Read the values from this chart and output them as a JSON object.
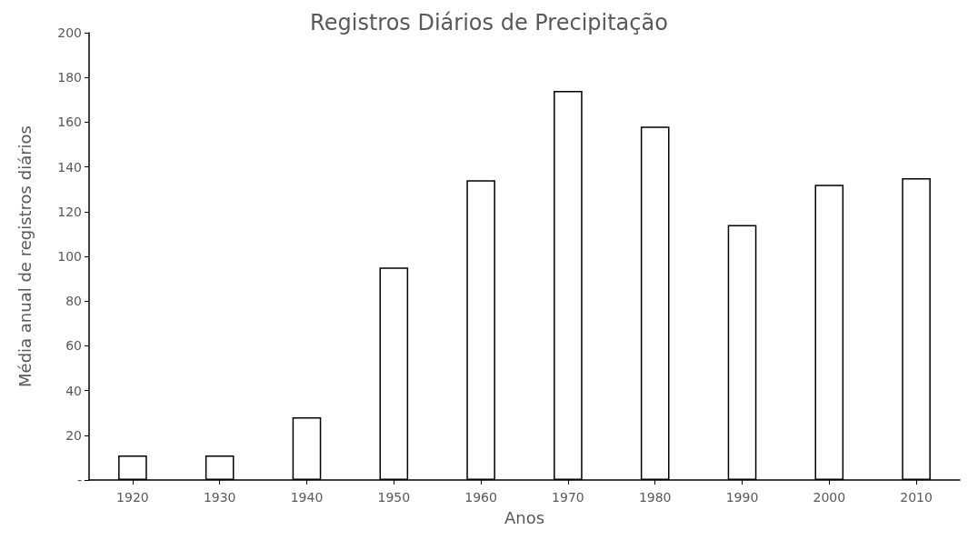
{
  "chart_data": {
    "type": "bar",
    "title": "Registros Diários de Precipitação",
    "xlabel": "Anos",
    "ylabel": "Média anual de registros diários",
    "categories": [
      "1920",
      "1930",
      "1940",
      "1950",
      "1960",
      "1970",
      "1980",
      "1990",
      "2000",
      "2010"
    ],
    "values": [
      11,
      11,
      28,
      95,
      134,
      174,
      158,
      114,
      132,
      135
    ],
    "color": "#ffffff",
    "ylim": [
      0,
      200
    ],
    "yticks": [
      {
        "value": 0,
        "label": "-"
      },
      20,
      40,
      60,
      80,
      100,
      120,
      140,
      160,
      180,
      200
    ],
    "grid": false
  }
}
